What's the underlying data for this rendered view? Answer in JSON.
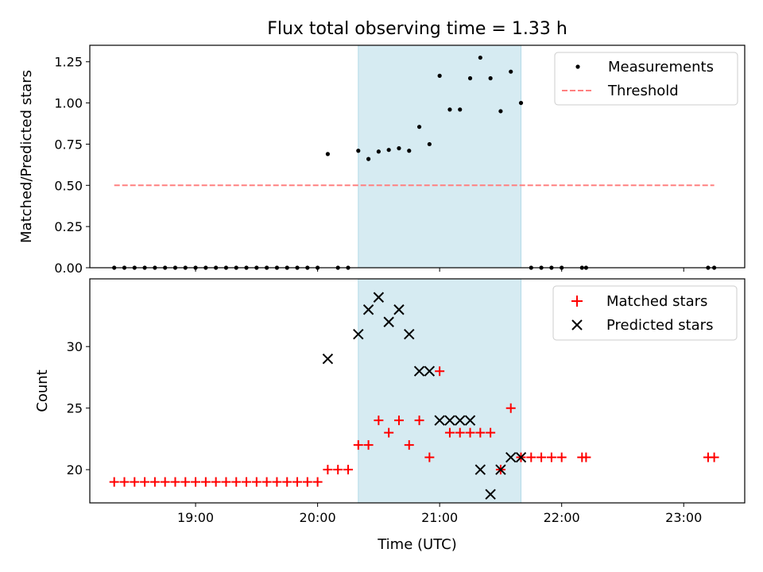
{
  "chart_data": [
    {
      "type": "scatter",
      "title": "Flux total observing time = 1.33 h",
      "ylabel": "Matched/Predicted stars",
      "xlabel": "",
      "xlim": [
        "18:08",
        "23:30"
      ],
      "ylim": [
        0,
        1.35
      ],
      "yticks": [
        "0.00",
        "0.25",
        "0.50",
        "0.75",
        "1.00",
        "1.25"
      ],
      "grid": false,
      "legend_position": "upper right",
      "highlight_span": {
        "start": "20:20",
        "end": "21:40"
      },
      "series": [
        {
          "name": "Measurements",
          "marker": "dot",
          "color": "#000000",
          "x": [
            "18:20",
            "18:25",
            "18:30",
            "18:35",
            "18:40",
            "18:45",
            "18:50",
            "18:55",
            "19:00",
            "19:05",
            "19:10",
            "19:15",
            "19:20",
            "19:25",
            "19:30",
            "19:35",
            "19:40",
            "19:45",
            "19:50",
            "19:55",
            "20:00",
            "20:05",
            "20:10",
            "20:15",
            "20:20",
            "20:25",
            "20:30",
            "20:35",
            "20:40",
            "20:45",
            "20:50",
            "20:55",
            "21:00",
            "21:05",
            "21:10",
            "21:15",
            "21:20",
            "21:25",
            "21:30",
            "21:35",
            "21:40",
            "21:45",
            "21:50",
            "21:55",
            "22:00",
            "22:10",
            "22:12",
            "23:12",
            "23:15"
          ],
          "y": [
            0,
            0,
            0,
            0,
            0,
            0,
            0,
            0,
            0,
            0,
            0,
            0,
            0,
            0,
            0,
            0,
            0,
            0,
            0,
            0,
            0,
            0.69,
            0,
            0,
            0.71,
            0.66,
            0.705,
            0.715,
            0.725,
            0.71,
            0.855,
            0.75,
            1.165,
            0.96,
            0.96,
            1.15,
            1.275,
            1.15,
            0.95,
            1.19,
            1.0,
            0,
            0,
            0,
            0,
            0,
            0,
            0,
            0
          ]
        },
        {
          "name": "Threshold",
          "line": "dashed",
          "color": "#ff8080",
          "x": [
            "18:20",
            "23:15"
          ],
          "y": [
            0.5,
            0.5
          ]
        }
      ]
    },
    {
      "type": "scatter",
      "title": "",
      "ylabel": "Count",
      "xlabel": "Time (UTC)",
      "xlim": [
        "18:08",
        "23:30"
      ],
      "ylim": [
        17.3,
        35.5
      ],
      "yticks": [
        "20",
        "25",
        "30"
      ],
      "xticks": [
        "19:00",
        "20:00",
        "21:00",
        "22:00",
        "23:00"
      ],
      "grid": false,
      "legend_position": "upper right",
      "highlight_span": {
        "start": "20:20",
        "end": "21:40"
      },
      "series": [
        {
          "name": "Matched stars",
          "marker": "plus",
          "color": "#ff0000",
          "x": [
            "18:20",
            "18:25",
            "18:30",
            "18:35",
            "18:40",
            "18:45",
            "18:50",
            "18:55",
            "19:00",
            "19:05",
            "19:10",
            "19:15",
            "19:20",
            "19:25",
            "19:30",
            "19:35",
            "19:40",
            "19:45",
            "19:50",
            "19:55",
            "20:00",
            "20:05",
            "20:10",
            "20:15",
            "20:20",
            "20:25",
            "20:30",
            "20:35",
            "20:40",
            "20:45",
            "20:50",
            "20:55",
            "21:00",
            "21:05",
            "21:10",
            "21:15",
            "21:20",
            "21:25",
            "21:30",
            "21:35",
            "21:40",
            "21:45",
            "21:50",
            "21:55",
            "22:00",
            "22:10",
            "22:12",
            "23:12",
            "23:15"
          ],
          "y": [
            19,
            19,
            19,
            19,
            19,
            19,
            19,
            19,
            19,
            19,
            19,
            19,
            19,
            19,
            19,
            19,
            19,
            19,
            19,
            19,
            19,
            20,
            20,
            20,
            22,
            22,
            24,
            23,
            24,
            22,
            24,
            21,
            28,
            23,
            23,
            23,
            23,
            23,
            20,
            25,
            21,
            21,
            21,
            21,
            21,
            21,
            21,
            21,
            21
          ]
        },
        {
          "name": "Predicted stars",
          "marker": "x",
          "color": "#000000",
          "x": [
            "20:05",
            "20:20",
            "20:25",
            "20:30",
            "20:35",
            "20:40",
            "20:45",
            "20:50",
            "20:55",
            "21:00",
            "21:05",
            "21:10",
            "21:15",
            "21:20",
            "21:25",
            "21:30",
            "21:35",
            "21:40"
          ],
          "y": [
            29,
            31,
            33,
            34,
            32,
            33,
            31,
            28,
            28,
            24,
            24,
            24,
            24,
            20,
            18,
            20,
            21,
            21
          ]
        }
      ]
    }
  ]
}
